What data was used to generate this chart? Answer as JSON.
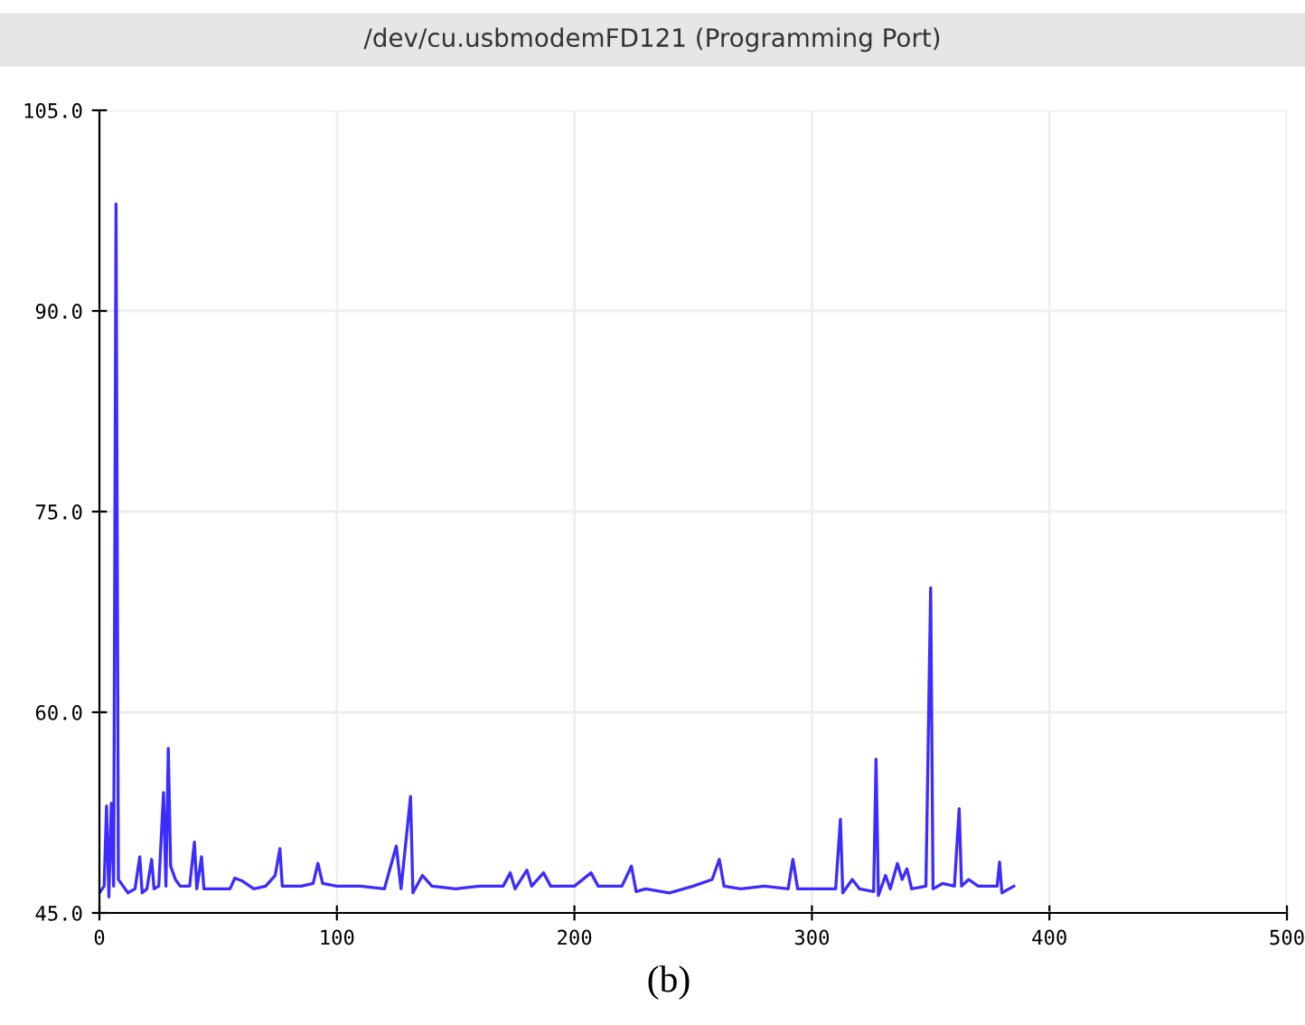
{
  "chart_data": {
    "type": "line",
    "title": "/dev/cu.usbmodemFD121 (Programming Port)",
    "annotations": [
      "(b)"
    ],
    "x": [
      0,
      2,
      3,
      4,
      5,
      6,
      7,
      8,
      10,
      12,
      15,
      17,
      18,
      20,
      22,
      23,
      25,
      27,
      28,
      29,
      30,
      32,
      34,
      38,
      40,
      41,
      43,
      44,
      48,
      55,
      57,
      60,
      65,
      70,
      74,
      76,
      77,
      85,
      90,
      92,
      94,
      100,
      110,
      120,
      125,
      127,
      131,
      132,
      136,
      140,
      150,
      160,
      170,
      173,
      175,
      180,
      182,
      187,
      190,
      200,
      207,
      210,
      220,
      224,
      226,
      230,
      240,
      250,
      258,
      261,
      263,
      270,
      280,
      290,
      292,
      294,
      300,
      310,
      312,
      313,
      317,
      320,
      326,
      327,
      328,
      331,
      333,
      336,
      338,
      340,
      342,
      348,
      350,
      351,
      355,
      360,
      362,
      363,
      366,
      370,
      378,
      379,
      380,
      385
    ],
    "series": [
      {
        "color": "#3c2cff",
        "values": [
          46.5,
          47,
          53,
          46.2,
          53.2,
          47,
          98,
          47.5,
          47,
          46.5,
          46.8,
          49.2,
          46.5,
          46.8,
          49,
          46.8,
          47,
          54,
          47,
          57.3,
          48.5,
          47.5,
          47,
          47,
          50.3,
          46.8,
          49.2,
          46.8,
          46.8,
          46.8,
          47.6,
          47.4,
          46.8,
          47,
          47.8,
          49.8,
          47,
          47,
          47.2,
          48.7,
          47.2,
          47,
          47,
          46.8,
          50,
          46.8,
          53.7,
          46.5,
          47.8,
          47,
          46.8,
          47,
          47,
          48,
          46.8,
          48.2,
          47,
          48,
          47,
          47,
          48,
          47,
          47,
          48.5,
          46.6,
          46.8,
          46.5,
          47,
          47.5,
          49,
          47,
          46.8,
          47,
          46.8,
          49,
          46.8,
          46.8,
          46.8,
          52,
          46.5,
          47.5,
          46.8,
          46.6,
          56.5,
          46.3,
          47.8,
          46.8,
          48.7,
          47.5,
          48.3,
          46.8,
          47,
          69.3,
          46.8,
          47.2,
          47,
          52.8,
          47,
          47.5,
          47,
          47,
          48.8,
          46.5,
          47
        ]
      }
    ],
    "xlim": [
      0,
      500
    ],
    "xticks": [
      0,
      100,
      200,
      300,
      400,
      500
    ],
    "ylim": [
      45,
      105
    ],
    "yticks": [
      {
        "value": 45,
        "label": "45.0"
      },
      {
        "value": 60,
        "label": "60.0"
      },
      {
        "value": 75,
        "label": "75.0"
      },
      {
        "value": 90,
        "label": "90.0"
      },
      {
        "value": 105,
        "label": "105.0"
      }
    ],
    "grid": true,
    "marker": "none",
    "line_style": "solid"
  }
}
